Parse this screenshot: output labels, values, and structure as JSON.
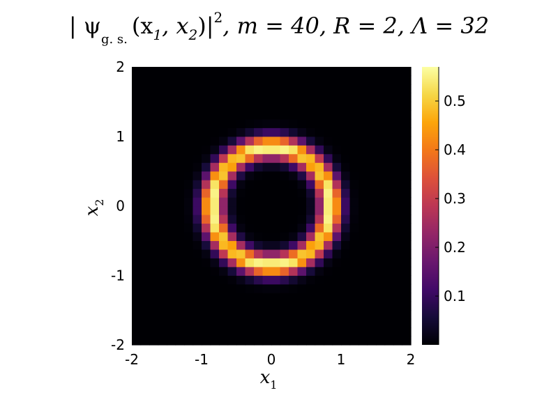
{
  "chart_data": {
    "type": "heatmap",
    "title": {
      "prefix": "| ψ",
      "subscript": "g. s.",
      "args": "(x",
      "arg1_sub": "1",
      "sep": ", x",
      "arg2_sub": "2",
      "close": ")|",
      "power": "2",
      "rest": ", m = 40, R = 2, Λ = 32"
    },
    "xlabel": {
      "base": "x",
      "sub": "1"
    },
    "ylabel": {
      "base": "x",
      "sub": "2"
    },
    "xlim": [
      -2,
      2
    ],
    "ylim": [
      -2,
      2
    ],
    "xticks": [
      "-2",
      "-1",
      "0",
      "1",
      "2"
    ],
    "yticks": [
      "-2",
      "-1",
      "0",
      "1",
      "2"
    ],
    "colormap": "inferno",
    "colorbar": {
      "range": [
        0.0,
        0.57
      ],
      "ticks": [
        "0.1",
        "0.2",
        "0.3",
        "0.4",
        "0.5"
      ],
      "tick_values": [
        0.1,
        0.2,
        0.3,
        0.4,
        0.5
      ]
    },
    "grid": {
      "cells": 32,
      "x_range": [
        -2,
        2
      ],
      "y_range": [
        -2,
        2
      ]
    },
    "density_model": {
      "ring_radius": 0.85,
      "ring_width": 0.165,
      "peak": 0.57,
      "azimuthal_modulation": 0.12
    },
    "grid_shown": false
  }
}
